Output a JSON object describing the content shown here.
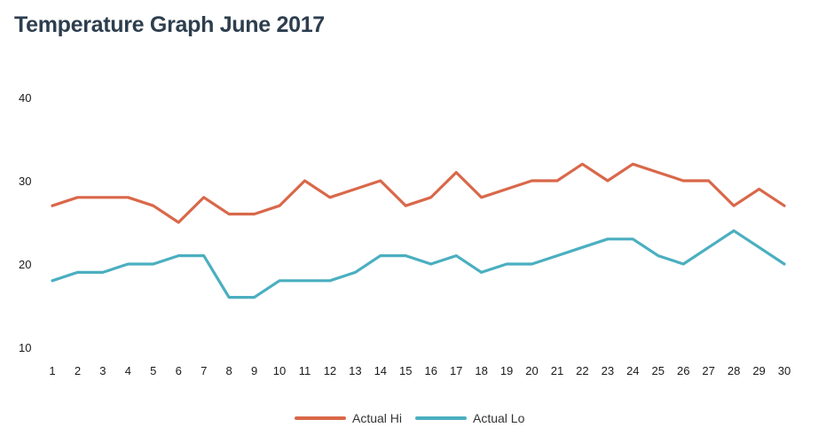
{
  "chart_data": {
    "type": "line",
    "title": "Temperature Graph June 2017",
    "xlabel": "",
    "ylabel": "",
    "ylim": [
      10,
      40
    ],
    "yticks": [
      10,
      20,
      30,
      40
    ],
    "grid": false,
    "legend": "bottom",
    "x": [
      1,
      2,
      3,
      4,
      5,
      6,
      7,
      8,
      9,
      10,
      11,
      12,
      13,
      14,
      15,
      16,
      17,
      18,
      19,
      20,
      21,
      22,
      23,
      24,
      25,
      26,
      27,
      28,
      29,
      30
    ],
    "series": [
      {
        "name": "Actual Hi",
        "color": "#d9684a",
        "values": [
          27,
          28,
          28,
          28,
          27,
          25,
          28,
          26,
          26,
          27,
          30,
          28,
          29,
          30,
          27,
          28,
          31,
          28,
          29,
          30,
          30,
          32,
          30,
          32,
          31,
          30,
          30,
          27,
          29,
          27
        ]
      },
      {
        "name": "Actual Lo",
        "color": "#4aafc0",
        "values": [
          18,
          19,
          19,
          20,
          20,
          21,
          21,
          16,
          16,
          18,
          18,
          18,
          19,
          21,
          21,
          20,
          21,
          19,
          20,
          20,
          21,
          22,
          23,
          23,
          21,
          20,
          22,
          24,
          22,
          20
        ]
      }
    ]
  }
}
